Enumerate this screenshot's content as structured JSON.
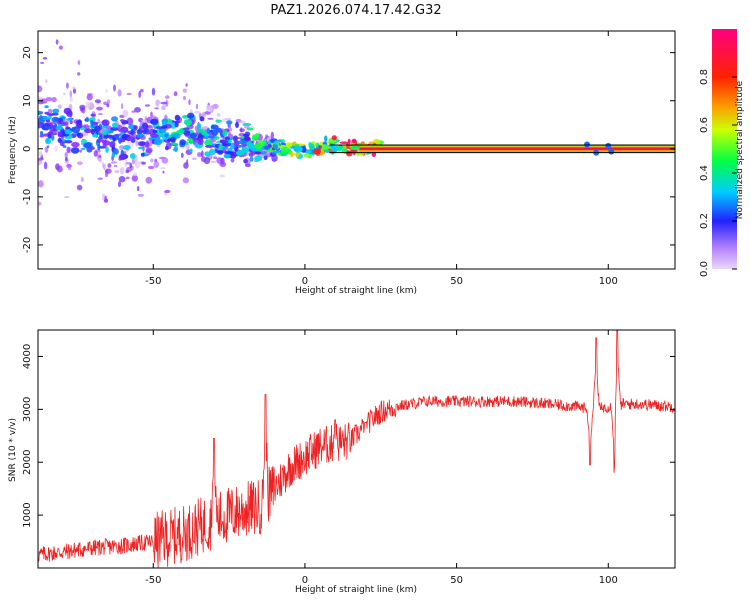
{
  "figure": {
    "title": "PAZ1.2026.074.17.42.G32"
  },
  "chart_data": [
    {
      "type": "heatmap",
      "title": "",
      "xlabel": "Height of straight line (km)",
      "ylabel": "Frequency (Hz)",
      "xlim": [
        -88,
        122
      ],
      "ylim": [
        -25,
        24.5
      ],
      "xticks": [
        -50,
        0,
        50,
        100
      ],
      "yticks": [
        -20,
        -10,
        0,
        10,
        20
      ],
      "colorbar": {
        "label": "Normalized spectral amplitude",
        "range": [
          0,
          1
        ],
        "ticks": [
          0,
          0.2,
          0.4,
          0.6,
          0.8
        ],
        "tick_labels": [
          "0.0",
          "0.2",
          "0.4",
          "0.6",
          "0.8"
        ],
        "colormap": [
          "#e8d8f8",
          "#9933ff",
          "#2222ff",
          "#00ccff",
          "#00ff44",
          "#ccff00",
          "#ff9900",
          "#ff2200",
          "#ff0080"
        ]
      },
      "ridge": {
        "x": [
          -88,
          -80,
          -70,
          -60,
          -50,
          -40,
          -30,
          -20,
          -12,
          -5,
          0,
          5,
          10,
          15,
          20,
          25,
          122
        ],
        "y": [
          6,
          4,
          3,
          2,
          2.5,
          3.5,
          2,
          1,
          0.5,
          0,
          -0.3,
          0.4,
          0.8,
          0.3,
          0,
          0,
          0
        ],
        "amplitude": [
          0.3,
          0.3,
          0.35,
          0.3,
          0.35,
          0.4,
          0.35,
          0.35,
          0.45,
          0.55,
          0.6,
          0.75,
          0.8,
          0.9,
          0.95,
          1,
          1
        ]
      },
      "reference_band_hz": [
        -0.8,
        0.8
      ],
      "scatter_region_x": [
        -88,
        -10
      ]
    },
    {
      "type": "line",
      "title": "",
      "xlabel": "Height of straight line (km)",
      "ylabel": "SNR (10 * v/v)",
      "xlim": [
        -88,
        122
      ],
      "ylim": [
        0,
        4500
      ],
      "xticks": [
        -50,
        0,
        50,
        100
      ],
      "yticks": [
        1000,
        2000,
        3000,
        4000
      ],
      "series": [
        {
          "name": "SNR",
          "color": "#ee2222",
          "envelope": {
            "x": [
              -88,
              -80,
              -70,
              -60,
              -50,
              -40,
              -30,
              -20,
              -15,
              -10,
              -5,
              0,
              5,
              10,
              15,
              20,
              25,
              30,
              40,
              50,
              60,
              70,
              80,
              90,
              95,
              100,
              105,
              110,
              122
            ],
            "y": [
              250,
              300,
              380,
              420,
              500,
              650,
              900,
              1100,
              1150,
              1500,
              1900,
              2100,
              2300,
              2350,
              2400,
              2700,
              2950,
              3050,
              3150,
              3150,
              3150,
              3150,
              3100,
              3050,
              3000,
              3050,
              3100,
              3100,
              3050
            ]
          },
          "spikes": [
            {
              "x": -30,
              "y": 2450
            },
            {
              "x": -13,
              "y": 3280
            },
            {
              "x": 10,
              "y": 2800
            },
            {
              "x": 20,
              "y": 2750
            },
            {
              "x": 94,
              "y": 1950
            },
            {
              "x": 96,
              "y": 4350
            },
            {
              "x": 102,
              "y": 1800
            },
            {
              "x": 103,
              "y": 4500
            }
          ]
        }
      ]
    }
  ]
}
